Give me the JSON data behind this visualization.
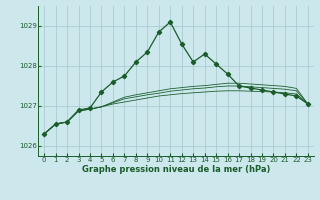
{
  "xlabel": "Graphe pression niveau de la mer (hPa)",
  "bg_color": "#cce8ec",
  "grid_color": "#aaccd4",
  "line_color": "#1a5c2a",
  "xlim": [
    -0.5,
    23.5
  ],
  "ylim": [
    1025.75,
    1029.5
  ],
  "yticks": [
    1026,
    1027,
    1028,
    1029
  ],
  "xticks": [
    0,
    1,
    2,
    3,
    4,
    5,
    6,
    7,
    8,
    9,
    10,
    11,
    12,
    13,
    14,
    15,
    16,
    17,
    18,
    19,
    20,
    21,
    22,
    23
  ],
  "series": [
    [
      1026.3,
      1026.55,
      1026.6,
      1026.9,
      1026.95,
      1027.35,
      1027.6,
      1027.75,
      1028.1,
      1028.35,
      1028.85,
      1029.1,
      1028.55,
      1028.1,
      1028.3,
      1028.05,
      1027.8,
      1027.5,
      1027.45,
      1027.4,
      1027.35,
      1027.3,
      1027.25,
      1027.05
    ],
    [
      1026.3,
      1026.55,
      1026.6,
      1026.88,
      1026.92,
      1026.98,
      1027.05,
      1027.1,
      1027.15,
      1027.2,
      1027.25,
      1027.28,
      1027.31,
      1027.33,
      1027.35,
      1027.37,
      1027.38,
      1027.38,
      1027.37,
      1027.36,
      1027.35,
      1027.33,
      1027.3,
      1027.05
    ],
    [
      1026.3,
      1026.55,
      1026.6,
      1026.88,
      1026.92,
      1026.98,
      1027.08,
      1027.18,
      1027.23,
      1027.28,
      1027.32,
      1027.37,
      1027.4,
      1027.43,
      1027.45,
      1027.48,
      1027.5,
      1027.5,
      1027.48,
      1027.46,
      1027.44,
      1027.42,
      1027.38,
      1027.05
    ],
    [
      1026.3,
      1026.55,
      1026.6,
      1026.88,
      1026.92,
      1026.98,
      1027.1,
      1027.22,
      1027.28,
      1027.33,
      1027.38,
      1027.43,
      1027.46,
      1027.49,
      1027.51,
      1027.54,
      1027.57,
      1027.57,
      1027.55,
      1027.53,
      1027.51,
      1027.49,
      1027.44,
      1027.05
    ]
  ],
  "marker": "D",
  "markersize": 2.2,
  "linewidth": 0.9,
  "tick_fontsize": 5.0,
  "xlabel_fontsize": 6.0
}
